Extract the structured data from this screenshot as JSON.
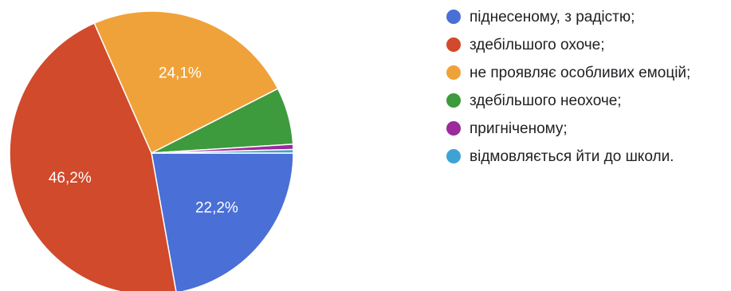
{
  "chart_data": {
    "type": "pie",
    "title": "",
    "legend_position": "right",
    "slices": [
      {
        "label": "піднесеному, з радістю;",
        "value": 22.2,
        "display": "22,2%",
        "color": "#4a6fd6"
      },
      {
        "label": "здебільшого охоче;",
        "value": 46.2,
        "display": "46,2%",
        "color": "#d04a2b"
      },
      {
        "label": "не проявляє особливих емоцій;",
        "value": 24.1,
        "display": "24,1%",
        "color": "#f0a23a"
      },
      {
        "label": "здебільшого неохоче;",
        "value": 6.5,
        "display": "",
        "color": "#3d9a3d"
      },
      {
        "label": "пригніченому;",
        "value": 0.6,
        "display": "",
        "color": "#9b2a9b"
      },
      {
        "label": "відмовляється йти до школи.",
        "value": 0.4,
        "display": "",
        "color": "#3ea3d4"
      }
    ]
  }
}
